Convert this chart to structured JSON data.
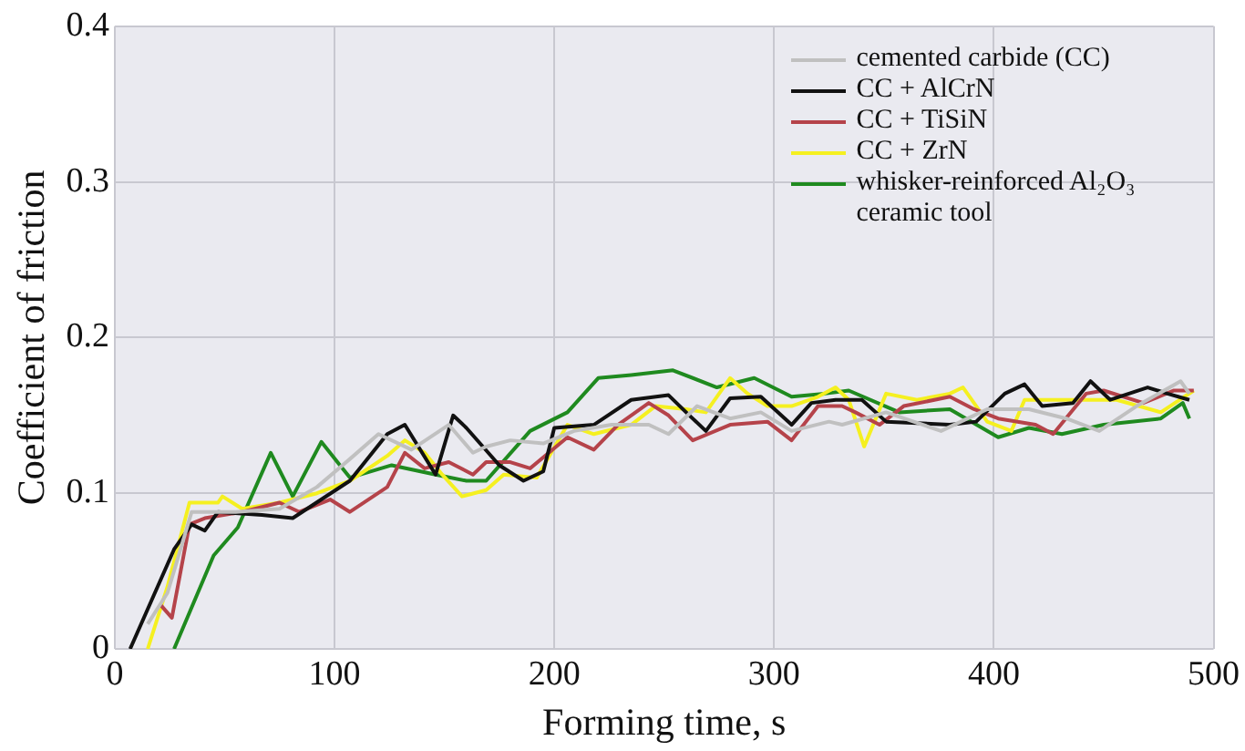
{
  "chart_data": {
    "type": "line",
    "xlabel": "Forming time, s",
    "ylabel": "Coefficient of friction",
    "xlim": [
      0,
      500
    ],
    "ylim": [
      0,
      0.4
    ],
    "xticks": [
      0,
      100,
      200,
      300,
      400,
      500
    ],
    "yticks": [
      0,
      0.1,
      0.2,
      0.3,
      0.4
    ],
    "grid": true,
    "legend": "top right",
    "marker": "none",
    "line_style": "solid",
    "series": [
      {
        "name": "cemented carbide (CC)",
        "color": "#c0c0c0",
        "x": [
          15,
          24,
          35,
          55,
          75,
          92,
          107,
          120,
          135,
          152,
          163,
          169,
          180,
          195,
          209,
          226,
          243,
          252,
          265,
          280,
          294,
          308,
          325,
          331,
          351,
          376,
          397,
          416,
          433,
          448,
          465,
          485,
          489
        ],
        "values": [
          0.016,
          0.036,
          0.088,
          0.088,
          0.09,
          0.104,
          0.122,
          0.138,
          0.128,
          0.144,
          0.126,
          0.13,
          0.134,
          0.132,
          0.14,
          0.144,
          0.144,
          0.138,
          0.156,
          0.148,
          0.152,
          0.14,
          0.146,
          0.144,
          0.152,
          0.14,
          0.154,
          0.154,
          0.148,
          0.14,
          0.156,
          0.172,
          0.164
        ]
      },
      {
        "name": "CC + AlCrN",
        "color": "#111111",
        "x": [
          7,
          27,
          35,
          41,
          47,
          67,
          81,
          107,
          124,
          132,
          146,
          154,
          160,
          175,
          186,
          195,
          200,
          218,
          235,
          252,
          260,
          269,
          280,
          294,
          308,
          317,
          328,
          340,
          351,
          380,
          392,
          405,
          414,
          422,
          436,
          444,
          453,
          470,
          479,
          489
        ],
        "values": [
          0,
          0.064,
          0.08,
          0.076,
          0.088,
          0.086,
          0.084,
          0.108,
          0.138,
          0.144,
          0.112,
          0.15,
          0.142,
          0.118,
          0.108,
          0.114,
          0.142,
          0.144,
          0.16,
          0.163,
          0.152,
          0.14,
          0.161,
          0.162,
          0.144,
          0.158,
          0.16,
          0.16,
          0.146,
          0.144,
          0.146,
          0.164,
          0.17,
          0.156,
          0.158,
          0.172,
          0.16,
          0.168,
          0.164,
          0.16
        ]
      },
      {
        "name": "CC + TiSiN",
        "color": "#b5434a",
        "x": [
          21,
          26,
          34,
          41,
          58,
          75,
          84,
          98,
          107,
          124,
          132,
          141,
          152,
          163,
          169,
          180,
          189,
          206,
          218,
          229,
          243,
          252,
          263,
          280,
          297,
          308,
          320,
          331,
          337,
          348,
          359,
          380,
          391,
          402,
          419,
          427,
          442,
          450,
          468,
          482,
          491
        ],
        "values": [
          0.028,
          0.02,
          0.08,
          0.084,
          0.088,
          0.094,
          0.088,
          0.096,
          0.088,
          0.104,
          0.126,
          0.116,
          0.12,
          0.112,
          0.12,
          0.12,
          0.116,
          0.136,
          0.128,
          0.144,
          0.158,
          0.15,
          0.134,
          0.144,
          0.146,
          0.134,
          0.156,
          0.156,
          0.152,
          0.144,
          0.156,
          0.162,
          0.154,
          0.148,
          0.144,
          0.138,
          0.164,
          0.166,
          0.158,
          0.166,
          0.166
        ]
      },
      {
        "name": "CC + ZrN",
        "color": "#f5f020",
        "x": [
          15,
          24,
          34,
          47,
          49,
          58,
          75,
          92,
          107,
          124,
          132,
          141,
          149,
          158,
          169,
          177,
          192,
          206,
          218,
          235,
          246,
          260,
          269,
          280,
          288,
          297,
          308,
          320,
          328,
          334,
          341,
          351,
          365,
          380,
          386,
          397,
          408,
          414,
          431,
          442,
          456,
          476,
          491
        ],
        "values": [
          0,
          0.04,
          0.094,
          0.094,
          0.098,
          0.09,
          0.094,
          0.1,
          0.108,
          0.124,
          0.134,
          0.126,
          0.112,
          0.098,
          0.102,
          0.112,
          0.11,
          0.144,
          0.138,
          0.144,
          0.156,
          0.154,
          0.152,
          0.174,
          0.164,
          0.156,
          0.156,
          0.162,
          0.168,
          0.16,
          0.13,
          0.164,
          0.16,
          0.164,
          0.168,
          0.146,
          0.14,
          0.16,
          0.16,
          0.16,
          0.16,
          0.152,
          0.166
        ]
      },
      {
        "name": "whisker-reinforced Al₂O₃ ceramic tool",
        "color": "#1f8a1f",
        "x": [
          27,
          45,
          56,
          71,
          81,
          94,
          107,
          126,
          146,
          160,
          169,
          189,
          206,
          220,
          235,
          254,
          274,
          291,
          308,
          323,
          334,
          357,
          380,
          402,
          416,
          431,
          450,
          476,
          486,
          489
        ],
        "values": [
          0,
          0.06,
          0.078,
          0.126,
          0.098,
          0.133,
          0.11,
          0.118,
          0.112,
          0.108,
          0.108,
          0.14,
          0.152,
          0.174,
          0.176,
          0.179,
          0.168,
          0.174,
          0.162,
          0.164,
          0.166,
          0.152,
          0.154,
          0.136,
          0.142,
          0.138,
          0.144,
          0.148,
          0.158,
          0.148
        ]
      }
    ]
  }
}
